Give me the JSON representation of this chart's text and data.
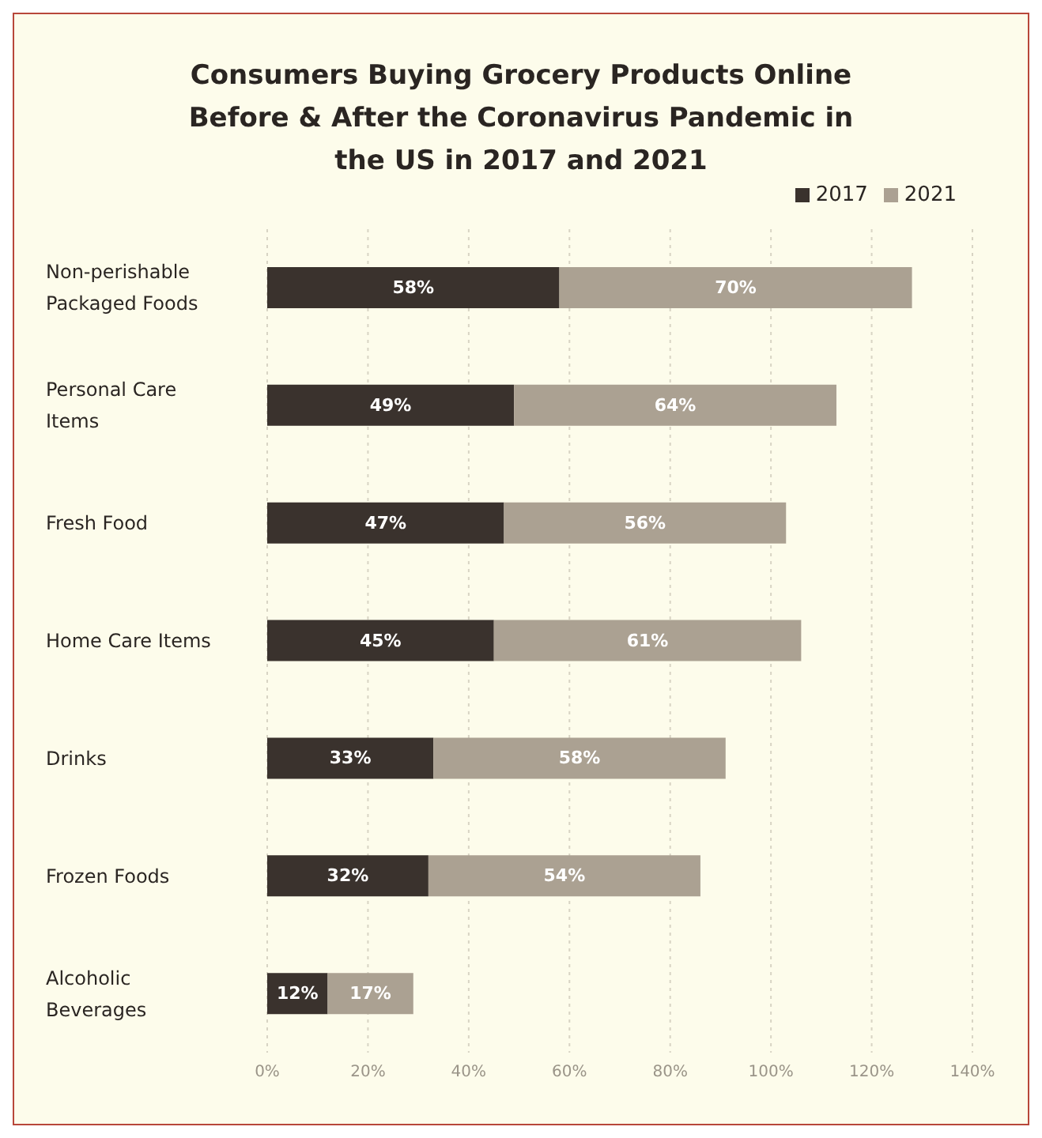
{
  "chart_data": {
    "type": "bar",
    "orientation": "horizontal",
    "stacked": true,
    "title": "Consumers Buying Grocery Products Online Before & After the Coronavirus Pandemic in the US in 2017 and 2021",
    "categories": [
      "Non-perishable Packaged Foods",
      "Personal Care Items",
      "Fresh Food",
      "Home Care Items",
      "Drinks",
      "Frozen Foods",
      "Alcoholic Beverages"
    ],
    "series": [
      {
        "name": "2017",
        "color": "#3a322d",
        "values": [
          58,
          49,
          47,
          45,
          33,
          32,
          12
        ],
        "value_labels": [
          "58%",
          "49%",
          "47%",
          "45%",
          "33%",
          "32%",
          "12%"
        ]
      },
      {
        "name": "2021",
        "color": "#aba192",
        "values": [
          70,
          64,
          56,
          61,
          58,
          54,
          17
        ],
        "value_labels": [
          "70%",
          "64%",
          "56%",
          "61%",
          "58%",
          "54%",
          "17%"
        ]
      }
    ],
    "xlim": [
      0,
      140
    ],
    "xticks": [
      {
        "value": 0,
        "label": "0%"
      },
      {
        "value": 20,
        "label": "20%"
      },
      {
        "value": 40,
        "label": "40%"
      },
      {
        "value": 60,
        "label": "60%"
      },
      {
        "value": 80,
        "label": "80%"
      },
      {
        "value": 100,
        "label": "100%"
      },
      {
        "value": 120,
        "label": "120%"
      },
      {
        "value": 140,
        "label": "140%"
      }
    ],
    "grid": "x",
    "legend": "top right"
  }
}
